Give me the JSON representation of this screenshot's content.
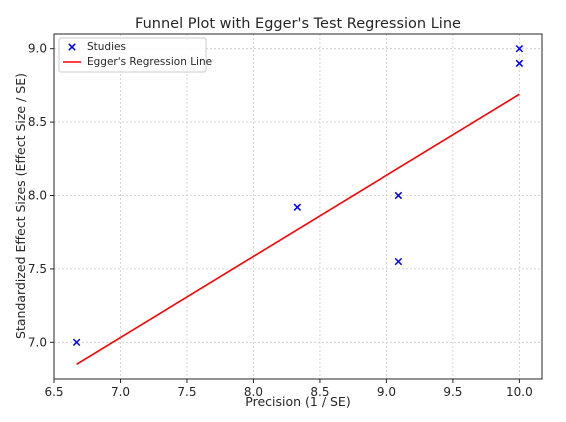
{
  "chart_data": {
    "type": "scatter",
    "title": "Funnel Plot with Egger's Test Regression Line",
    "xlabel": "Precision (1 / SE)",
    "ylabel": "Standardized Effect Sizes (Effect Size / SE)",
    "xlim": [
      6.5,
      10.17
    ],
    "ylim": [
      6.75,
      9.1
    ],
    "xticks": [
      "6.5",
      "7.0",
      "7.5",
      "8.0",
      "8.5",
      "9.0",
      "9.5",
      "10.0"
    ],
    "yticks": [
      "7.0",
      "7.5",
      "8.0",
      "8.5",
      "9.0"
    ],
    "grid": true,
    "legend_position": "top-left",
    "series": [
      {
        "name": "Studies",
        "kind": "scatter",
        "marker": "x",
        "color": "#0000ff",
        "x": [
          6.67,
          8.33,
          9.09,
          9.09,
          10.0,
          10.0
        ],
        "y": [
          7.0,
          7.92,
          8.0,
          7.55,
          9.0,
          8.9
        ]
      },
      {
        "name": "Egger's Regression Line",
        "kind": "line",
        "color": "#ff0000",
        "x": [
          6.67,
          10.0
        ],
        "y": [
          6.85,
          8.69
        ]
      }
    ]
  }
}
